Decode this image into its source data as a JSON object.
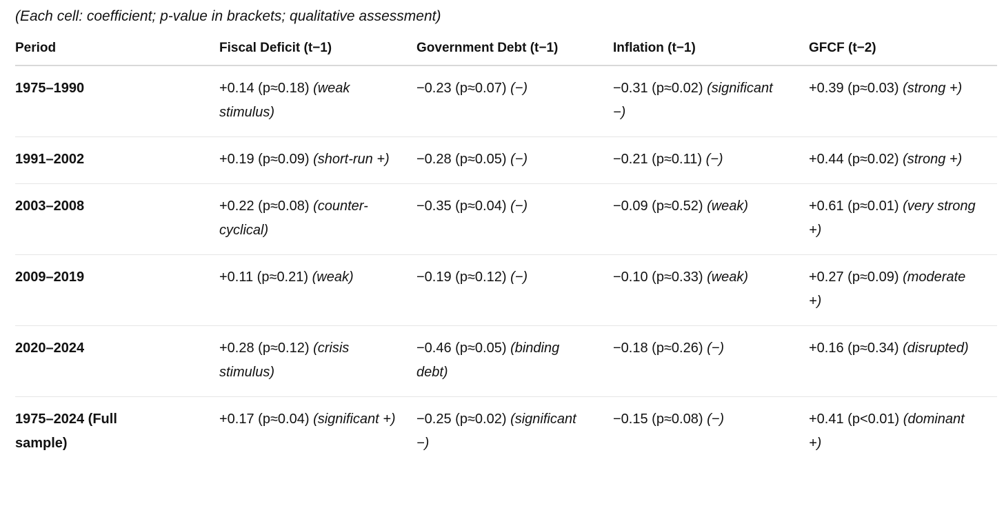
{
  "note": "(Each cell: coefficient; p-value in brackets; qualitative assessment)",
  "table": {
    "headers": [
      "Period",
      "Fiscal Deficit (t−1)",
      "Government Debt (t−1)",
      "Inflation (t−1)",
      "GFCF (t−2)"
    ],
    "rows": [
      [
        "1975–1990",
        {
          "value": "+0.14 (p≈0.18)",
          "assessment": "(weak stimulus)"
        },
        {
          "value": "−0.23 (p≈0.07)",
          "assessment": "(−)"
        },
        {
          "value": "−0.31 (p≈0.02)",
          "assessment": "(significant −)"
        },
        {
          "value": "+0.39 (p≈0.03)",
          "assessment": "(strong +)"
        }
      ],
      [
        "1991–2002",
        {
          "value": "+0.19 (p≈0.09)",
          "assessment": "(short-run +)"
        },
        {
          "value": "−0.28 (p≈0.05)",
          "assessment": "(−)"
        },
        {
          "value": "−0.21 (p≈0.11)",
          "assessment": "(−)"
        },
        {
          "value": "+0.44 (p≈0.02)",
          "assessment": "(strong +)"
        }
      ],
      [
        "2003–2008",
        {
          "value": "+0.22 (p≈0.08)",
          "assessment": "(counter-cyclical)"
        },
        {
          "value": "−0.35 (p≈0.04)",
          "assessment": "(−)"
        },
        {
          "value": "−0.09 (p≈0.52)",
          "assessment": "(weak)"
        },
        {
          "value": "+0.61 (p≈0.01)",
          "assessment": "(very strong +)"
        }
      ],
      [
        "2009–2019",
        {
          "value": "+0.11 (p≈0.21)",
          "assessment": "(weak)"
        },
        {
          "value": "−0.19 (p≈0.12)",
          "assessment": "(−)"
        },
        {
          "value": "−0.10 (p≈0.33)",
          "assessment": "(weak)"
        },
        {
          "value": "+0.27 (p≈0.09)",
          "assessment": "(moderate +)"
        }
      ],
      [
        "2020–2024",
        {
          "value": "+0.28 (p≈0.12)",
          "assessment": "(crisis stimulus)"
        },
        {
          "value": "−0.46 (p≈0.05)",
          "assessment": "(binding debt)"
        },
        {
          "value": "−0.18 (p≈0.26)",
          "assessment": "(−)"
        },
        {
          "value": "+0.16 (p≈0.34)",
          "assessment": "(disrupted)"
        }
      ],
      [
        "1975–2024 (Full sample)",
        {
          "value": "+0.17 (p≈0.04)",
          "assessment": "(significant +)"
        },
        {
          "value": "−0.25 (p≈0.02)",
          "assessment": "(significant −)"
        },
        {
          "value": "−0.15 (p≈0.08)",
          "assessment": "(−)"
        },
        {
          "value": "+0.41 (p<0.01)",
          "assessment": "(dominant +)"
        }
      ]
    ]
  }
}
